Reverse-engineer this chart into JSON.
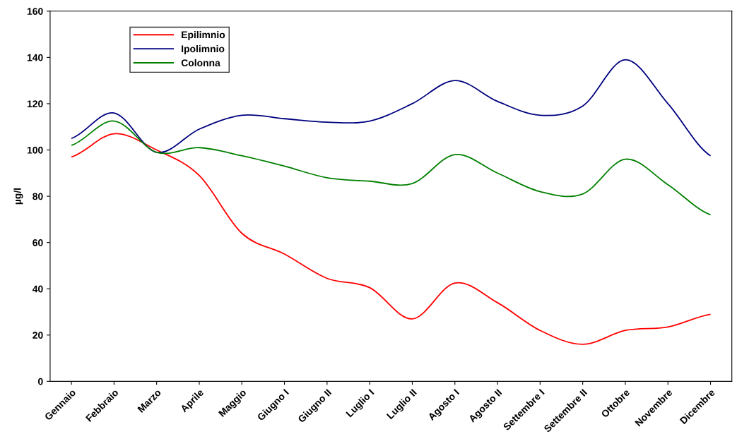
{
  "chart_data": {
    "type": "line",
    "ylabel": "µg/l",
    "categories": [
      "Gennaio",
      "Febbraio",
      "Marzo",
      "Aprile",
      "Maggio",
      "Giugno I",
      "Giugno II",
      "Luglio I",
      "Luglio II",
      "Agosto I",
      "Agosto II",
      "Settembre I",
      "Settembre II",
      "Ottobre",
      "Novembre",
      "Dicembre"
    ],
    "series": [
      {
        "name": "Epilimnio",
        "color": "#ff0000",
        "values": [
          97,
          107,
          100,
          89,
          64,
          55,
          44.5,
          40.5,
          27,
          42.5,
          34,
          22,
          16,
          22,
          23.5,
          29
        ]
      },
      {
        "name": "Ipolimnio",
        "color": "#000080",
        "values": [
          105,
          116,
          99,
          109,
          115,
          113.5,
          112,
          112.5,
          120,
          130,
          121,
          115,
          119,
          139,
          120,
          97.5
        ]
      },
      {
        "name": "Colonna",
        "color": "#008000",
        "values": [
          102,
          112.5,
          99,
          101,
          97.5,
          93,
          88,
          86.5,
          85.5,
          98,
          90,
          82,
          81,
          96,
          85,
          72
        ]
      }
    ],
    "ylim": [
      0,
      160
    ],
    "yticks": [
      0,
      20,
      40,
      60,
      80,
      100,
      120,
      140,
      160
    ],
    "grid": false,
    "legend": "top left",
    "marker": "none",
    "line_style": "solid"
  }
}
